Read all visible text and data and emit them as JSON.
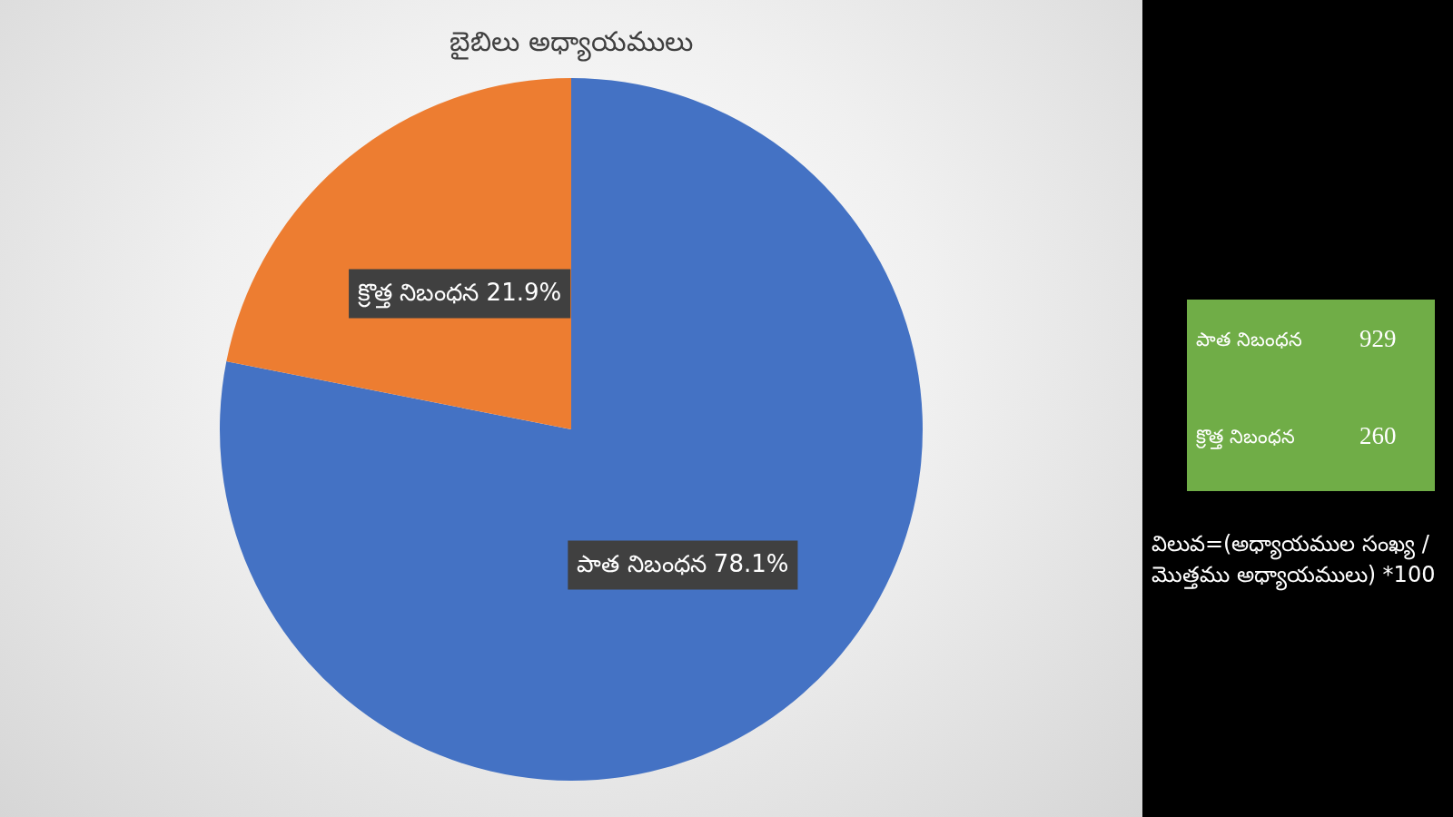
{
  "chart_data": [
    {
      "type": "pie",
      "title": "బైబిలు అధ్యాయములు",
      "categories": [
        "పాత నిబంధన",
        "క్రొత్త నిబంధన"
      ],
      "values": [
        78.1,
        21.9
      ],
      "colors": [
        "#4472c4",
        "#ed7d31"
      ],
      "value_labels": [
        "78.1%",
        "21.9%"
      ],
      "annotations": [
        "విలువ=(అధ్యాయముల సంఖ్య / మొత్తము అధ్యాయములు) *100"
      ]
    },
    {
      "type": "other",
      "color": "#70ad47",
      "annotations": [
        "పాత నిబంధన",
        "929",
        "క్రొత్త నిబంధన",
        "260"
      ]
    }
  ]
}
